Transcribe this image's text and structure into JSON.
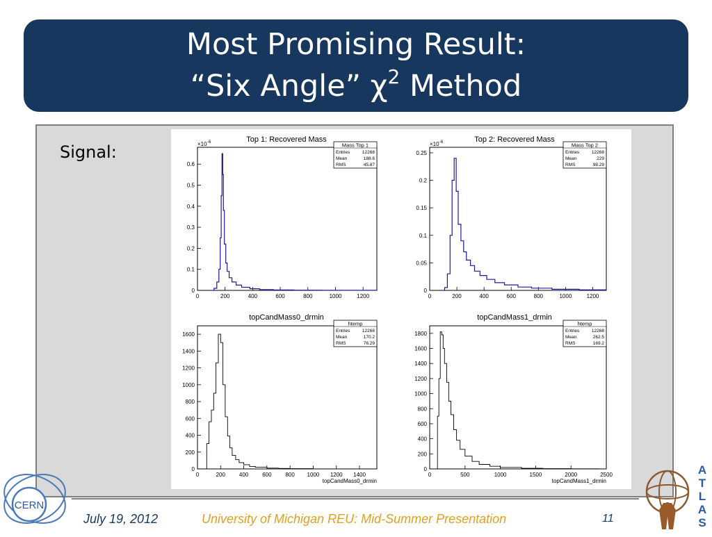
{
  "slide": {
    "title_line1": "Most Promising Result:",
    "title_line2_pre": "“Six Angle” χ",
    "title_line2_sup": "2",
    "title_line2_post": " Method",
    "signal_label": "Signal:",
    "colors": {
      "title_bg": "#17375e",
      "content_bg": "#d9d9d9",
      "histo_blue": "#1a1aa0",
      "footer_orange": "#e0a020"
    }
  },
  "footer": {
    "date": "July 19, 2012",
    "center": "University of Michigan REU:  Mid-Summer Presentation",
    "page": "11"
  },
  "logos": {
    "left": "CERN",
    "right_letters": [
      "A",
      "T",
      "L",
      "A",
      "S"
    ]
  },
  "chart_data": [
    {
      "type": "histogram",
      "title": "Top 1: Recovered Mass",
      "color": "#1a1aa0",
      "exponent_label": "×10",
      "exponent": "-6",
      "xlim": [
        0,
        1300
      ],
      "ylim": [
        0,
        0.68
      ],
      "xticks": [
        "0",
        "200",
        "400",
        "600",
        "800",
        "1000",
        "1200"
      ],
      "yticks": [
        "0",
        "0.1",
        "0.2",
        "0.3",
        "0.4",
        "0.5",
        "0.6"
      ],
      "stats": {
        "name": "Mass Top 1",
        "rows": [
          [
            "Entries",
            "12268"
          ],
          [
            "Mean",
            "188.6"
          ],
          [
            "RMS",
            "45.87"
          ]
        ]
      },
      "x": [
        100,
        120,
        140,
        155,
        165,
        172,
        178,
        183,
        188,
        195,
        205,
        215,
        230,
        250,
        280,
        320,
        380,
        450,
        550,
        700,
        900,
        1100,
        1300
      ],
      "y": [
        0,
        0.01,
        0.04,
        0.1,
        0.25,
        0.45,
        0.65,
        0.55,
        0.38,
        0.22,
        0.13,
        0.09,
        0.06,
        0.04,
        0.025,
        0.015,
        0.008,
        0.004,
        0.002,
        0.001,
        0.0005,
        0.0002,
        0
      ]
    },
    {
      "type": "histogram",
      "title": "Top 2: Recovered Mass",
      "color": "#1a1aa0",
      "exponent_label": "×10",
      "exponent": "-6",
      "xlim": [
        0,
        1300
      ],
      "ylim": [
        0,
        0.26
      ],
      "xticks": [
        "0",
        "200",
        "400",
        "600",
        "800",
        "1000",
        "1200"
      ],
      "yticks": [
        "0",
        "0.05",
        "0.1",
        "0.15",
        "0.2",
        "0.25"
      ],
      "stats": {
        "name": "Mass Top 2",
        "rows": [
          [
            "Entries",
            "12268"
          ],
          [
            "Mean",
            "229"
          ],
          [
            "RMS",
            "98.29"
          ]
        ]
      },
      "x": [
        90,
        110,
        130,
        150,
        165,
        180,
        195,
        210,
        230,
        250,
        270,
        300,
        330,
        370,
        420,
        480,
        550,
        650,
        750,
        900,
        1100,
        1300
      ],
      "y": [
        0,
        0.005,
        0.03,
        0.1,
        0.2,
        0.24,
        0.18,
        0.12,
        0.09,
        0.07,
        0.055,
        0.045,
        0.035,
        0.027,
        0.02,
        0.014,
        0.01,
        0.006,
        0.004,
        0.002,
        0.001,
        0
      ]
    },
    {
      "type": "histogram",
      "title": "topCandMass0_drmin",
      "color": "#000000",
      "xlabel": "topCandMass0_drmin",
      "xlim": [
        0,
        1550
      ],
      "ylim": [
        0,
        1700
      ],
      "xticks": [
        "0",
        "200",
        "400",
        "600",
        "800",
        "1000",
        "1200",
        "1400"
      ],
      "yticks": [
        "0",
        "200",
        "400",
        "600",
        "800",
        "1000",
        "1200",
        "1400",
        "1600"
      ],
      "stats": {
        "name": "htemp",
        "rows": [
          [
            "Entries",
            "12268"
          ],
          [
            "Mean",
            "170.2"
          ],
          [
            "RMS",
            "76.29"
          ]
        ]
      },
      "x": [
        60,
        80,
        100,
        120,
        140,
        160,
        180,
        200,
        220,
        240,
        260,
        280,
        300,
        330,
        360,
        400,
        450,
        500,
        600,
        700,
        800,
        1000,
        1300
      ],
      "y": [
        0,
        300,
        560,
        700,
        900,
        1260,
        1600,
        1500,
        1000,
        620,
        390,
        250,
        160,
        110,
        75,
        50,
        30,
        20,
        10,
        6,
        3,
        1,
        0
      ]
    },
    {
      "type": "histogram",
      "title": "topCandMass1_drmin",
      "color": "#000000",
      "xlabel": "topCandMass1_drmin",
      "xlim": [
        0,
        2500
      ],
      "ylim": [
        0,
        1900
      ],
      "xticks": [
        "0",
        "500",
        "1000",
        "1500",
        "2000",
        "2500"
      ],
      "yticks": [
        "0",
        "200",
        "400",
        "600",
        "800",
        "1000",
        "1200",
        "1400",
        "1600",
        "1800"
      ],
      "stats": {
        "name": "htemp",
        "rows": [
          [
            "Entries",
            "12268"
          ],
          [
            "Mean",
            "262.5"
          ],
          [
            "RMS",
            "169.2"
          ]
        ]
      },
      "x": [
        80,
        110,
        130,
        150,
        170,
        190,
        210,
        240,
        270,
        300,
        340,
        380,
        430,
        500,
        600,
        700,
        850,
        1000,
        1300,
        1600,
        2000,
        2400
      ],
      "y": [
        0,
        700,
        1200,
        1820,
        1780,
        1600,
        1400,
        1150,
        900,
        720,
        520,
        380,
        260,
        170,
        100,
        60,
        35,
        20,
        8,
        4,
        2,
        0
      ]
    }
  ]
}
